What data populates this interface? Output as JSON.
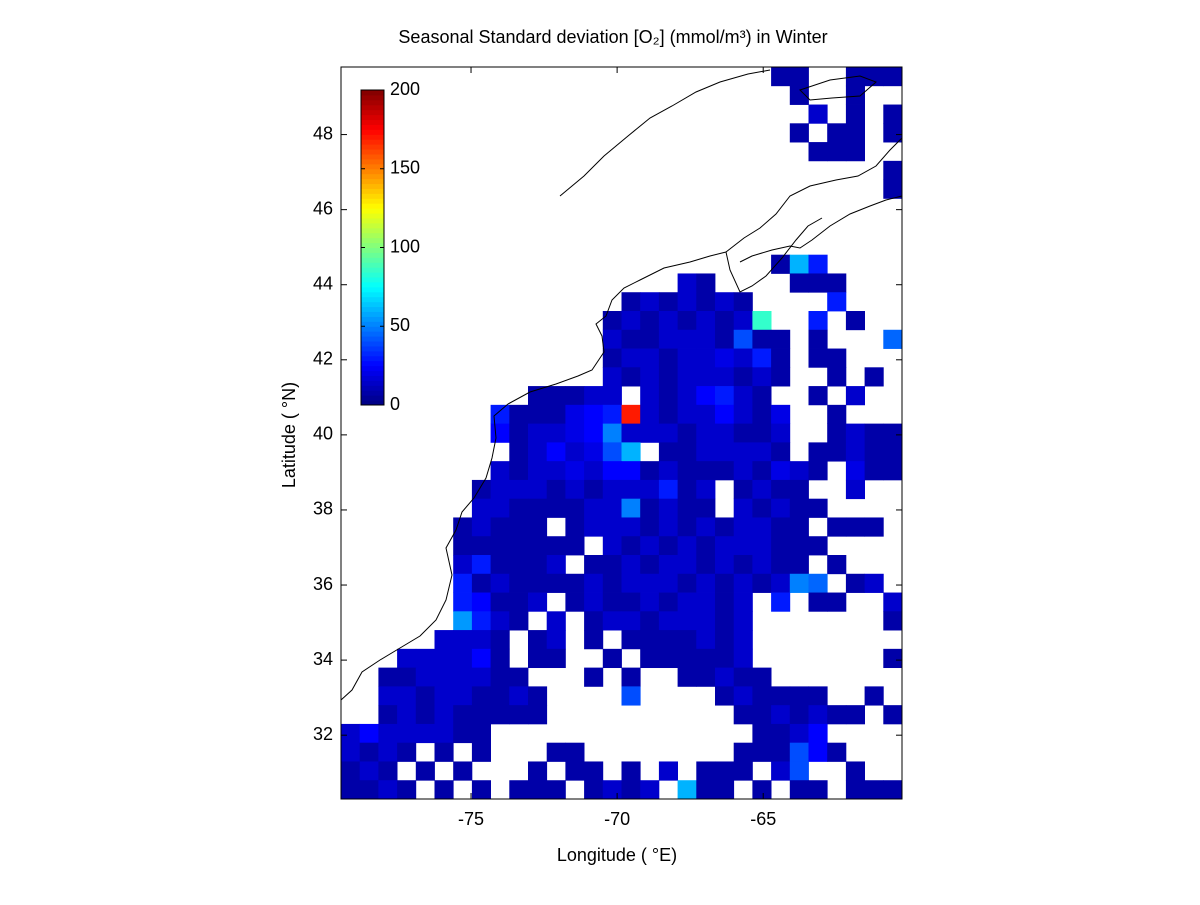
{
  "chart_data": {
    "type": "heatmap",
    "title": "Seasonal Standard deviation [O₂] (mmol/m³) in  Winter",
    "x_label": "Longitude ( °E)",
    "y_label": "Latitude ( °N)",
    "xlim": [
      -79.45,
      -60.25
    ],
    "ylim": [
      30.3,
      49.8
    ],
    "xticks": [
      -75,
      -70,
      -65
    ],
    "yticks": [
      32,
      34,
      36,
      38,
      40,
      42,
      44,
      46,
      48
    ],
    "colormap": "jet",
    "clim": [
      0,
      200
    ],
    "colorbar_ticks": [
      0,
      50,
      100,
      150,
      200
    ],
    "x": [
      -79.13,
      -78.49,
      -77.85,
      -77.21,
      -76.57,
      -75.93,
      -75.29,
      -74.65,
      -74.01,
      -73.37,
      -72.73,
      -72.09,
      -71.45,
      -70.81,
      -70.17,
      -69.53,
      -68.89,
      -68.25,
      -67.61,
      -66.97,
      -66.33,
      -65.69,
      -65.05,
      -64.41,
      -63.77,
      -63.13,
      -62.49,
      -61.85,
      -61.21,
      -60.57
    ],
    "y": [
      49.55,
      49.05,
      48.55,
      48.05,
      47.55,
      47.05,
      46.55,
      46.05,
      45.55,
      45.05,
      44.55,
      44.05,
      43.55,
      43.05,
      42.55,
      42.05,
      41.55,
      41.05,
      40.55,
      40.05,
      39.55,
      39.05,
      38.55,
      38.05,
      37.55,
      37.05,
      36.55,
      36.05,
      35.55,
      35.05,
      34.55,
      34.05,
      33.55,
      33.05,
      32.55,
      32.05,
      31.55,
      31.05,
      30.55
    ],
    "z": [
      [
        null,
        null,
        null,
        null,
        null,
        null,
        null,
        null,
        null,
        null,
        null,
        null,
        null,
        null,
        null,
        null,
        null,
        null,
        null,
        null,
        null,
        null,
        null,
        8,
        8,
        null,
        null,
        8,
        8,
        8
      ],
      [
        null,
        null,
        null,
        null,
        null,
        null,
        null,
        null,
        null,
        null,
        null,
        null,
        null,
        null,
        null,
        null,
        null,
        null,
        null,
        null,
        null,
        null,
        null,
        null,
        8,
        null,
        null,
        8,
        null,
        null
      ],
      [
        null,
        null,
        null,
        null,
        null,
        null,
        null,
        null,
        null,
        null,
        null,
        null,
        null,
        null,
        null,
        null,
        null,
        null,
        null,
        null,
        null,
        null,
        null,
        null,
        null,
        15,
        null,
        8,
        null,
        8
      ],
      [
        null,
        null,
        null,
        null,
        null,
        null,
        null,
        null,
        null,
        null,
        null,
        null,
        null,
        null,
        null,
        null,
        null,
        null,
        null,
        null,
        null,
        null,
        null,
        null,
        8,
        null,
        8,
        8,
        null,
        8
      ],
      [
        null,
        null,
        null,
        null,
        null,
        null,
        null,
        null,
        null,
        null,
        null,
        null,
        null,
        null,
        null,
        null,
        null,
        null,
        null,
        null,
        null,
        null,
        null,
        null,
        null,
        8,
        8,
        8,
        null,
        null
      ],
      [
        null,
        null,
        null,
        null,
        null,
        null,
        null,
        null,
        null,
        null,
        null,
        null,
        null,
        null,
        null,
        null,
        null,
        null,
        null,
        null,
        null,
        null,
        null,
        null,
        null,
        null,
        null,
        null,
        null,
        8
      ],
      [
        null,
        null,
        null,
        null,
        null,
        null,
        null,
        null,
        null,
        null,
        null,
        null,
        null,
        null,
        null,
        null,
        null,
        null,
        null,
        null,
        null,
        null,
        null,
        null,
        null,
        null,
        null,
        null,
        null,
        8
      ],
      [
        null,
        null,
        null,
        null,
        null,
        null,
        null,
        null,
        null,
        null,
        null,
        null,
        null,
        null,
        null,
        null,
        null,
        null,
        null,
        null,
        null,
        null,
        null,
        null,
        null,
        null,
        null,
        null,
        null,
        null
      ],
      [
        null,
        null,
        null,
        null,
        null,
        null,
        null,
        null,
        null,
        null,
        null,
        null,
        null,
        null,
        null,
        null,
        null,
        null,
        null,
        null,
        null,
        null,
        null,
        null,
        null,
        null,
        null,
        null,
        null,
        null
      ],
      [
        null,
        null,
        null,
        null,
        null,
        null,
        null,
        null,
        null,
        null,
        null,
        null,
        null,
        null,
        null,
        null,
        null,
        null,
        null,
        null,
        null,
        null,
        null,
        null,
        null,
        null,
        null,
        null,
        null,
        null
      ],
      [
        null,
        null,
        null,
        null,
        null,
        null,
        null,
        null,
        null,
        null,
        null,
        null,
        null,
        null,
        null,
        null,
        null,
        null,
        null,
        null,
        null,
        null,
        null,
        8,
        60,
        30,
        null,
        null,
        null,
        null
      ],
      [
        null,
        null,
        null,
        null,
        null,
        null,
        null,
        null,
        null,
        null,
        null,
        null,
        null,
        null,
        null,
        null,
        null,
        null,
        15,
        8,
        null,
        null,
        null,
        null,
        8,
        8,
        8,
        null,
        null,
        null
      ],
      [
        null,
        null,
        null,
        null,
        null,
        null,
        null,
        null,
        null,
        null,
        null,
        null,
        null,
        null,
        null,
        8,
        15,
        8,
        15,
        8,
        15,
        8,
        null,
        null,
        null,
        null,
        30,
        null,
        null,
        null
      ],
      [
        null,
        null,
        null,
        null,
        null,
        null,
        null,
        null,
        null,
        null,
        null,
        null,
        null,
        null,
        8,
        15,
        8,
        15,
        8,
        15,
        8,
        15,
        85,
        null,
        null,
        30,
        null,
        8,
        null,
        null
      ],
      [
        null,
        null,
        null,
        null,
        null,
        null,
        null,
        null,
        null,
        null,
        null,
        null,
        null,
        null,
        15,
        8,
        8,
        15,
        15,
        15,
        8,
        40,
        8,
        8,
        null,
        8,
        null,
        null,
        null,
        45
      ],
      [
        null,
        null,
        null,
        null,
        null,
        null,
        null,
        null,
        null,
        null,
        null,
        null,
        null,
        null,
        8,
        15,
        15,
        8,
        15,
        15,
        20,
        15,
        30,
        8,
        null,
        8,
        8,
        null,
        null,
        null
      ],
      [
        null,
        null,
        null,
        null,
        null,
        null,
        null,
        null,
        null,
        null,
        null,
        null,
        null,
        null,
        15,
        8,
        15,
        8,
        15,
        15,
        15,
        8,
        15,
        8,
        null,
        null,
        8,
        null,
        8,
        null
      ],
      [
        null,
        null,
        null,
        null,
        null,
        null,
        null,
        null,
        null,
        null,
        8,
        8,
        8,
        15,
        15,
        null,
        15,
        8,
        15,
        25,
        30,
        15,
        8,
        null,
        null,
        8,
        null,
        15,
        null,
        null
      ],
      [
        null,
        null,
        null,
        null,
        null,
        null,
        null,
        null,
        30,
        8,
        8,
        8,
        20,
        25,
        30,
        170,
        15,
        8,
        15,
        15,
        25,
        15,
        8,
        20,
        null,
        null,
        8,
        null,
        null,
        null
      ],
      [
        null,
        null,
        null,
        null,
        null,
        null,
        null,
        null,
        25,
        8,
        15,
        15,
        20,
        25,
        50,
        15,
        15,
        15,
        8,
        15,
        15,
        8,
        8,
        15,
        null,
        null,
        8,
        15,
        8,
        8
      ],
      [
        null,
        null,
        null,
        null,
        null,
        null,
        null,
        null,
        null,
        8,
        15,
        25,
        15,
        20,
        40,
        60,
        null,
        8,
        8,
        15,
        15,
        15,
        15,
        8,
        null,
        8,
        8,
        15,
        8,
        8
      ],
      [
        null,
        null,
        null,
        null,
        null,
        null,
        null,
        null,
        15,
        8,
        15,
        15,
        20,
        15,
        25,
        25,
        8,
        15,
        8,
        8,
        8,
        15,
        8,
        20,
        15,
        8,
        null,
        20,
        8,
        8
      ],
      [
        null,
        null,
        null,
        null,
        null,
        null,
        null,
        8,
        15,
        15,
        15,
        8,
        15,
        8,
        15,
        15,
        15,
        30,
        8,
        15,
        null,
        8,
        15,
        8,
        8,
        null,
        null,
        15,
        null,
        null
      ],
      [
        null,
        null,
        null,
        null,
        null,
        null,
        null,
        15,
        15,
        8,
        8,
        8,
        8,
        15,
        15,
        50,
        8,
        15,
        8,
        8,
        null,
        15,
        8,
        15,
        8,
        8,
        null,
        null,
        null,
        null
      ],
      [
        null,
        null,
        null,
        null,
        null,
        null,
        8,
        15,
        8,
        8,
        8,
        null,
        8,
        15,
        15,
        15,
        8,
        15,
        8,
        15,
        8,
        15,
        15,
        8,
        8,
        null,
        8,
        8,
        8,
        null
      ],
      [
        null,
        null,
        null,
        null,
        null,
        null,
        8,
        8,
        8,
        8,
        8,
        8,
        8,
        null,
        15,
        8,
        15,
        8,
        15,
        8,
        15,
        15,
        15,
        8,
        8,
        8,
        null,
        null,
        null,
        null
      ],
      [
        null,
        null,
        null,
        null,
        null,
        null,
        15,
        30,
        8,
        8,
        8,
        15,
        null,
        8,
        8,
        15,
        8,
        15,
        15,
        8,
        15,
        8,
        15,
        8,
        8,
        null,
        8,
        null,
        null,
        null
      ],
      [
        null,
        null,
        null,
        null,
        null,
        null,
        30,
        8,
        15,
        8,
        8,
        8,
        8,
        15,
        8,
        15,
        15,
        15,
        8,
        15,
        8,
        15,
        8,
        15,
        50,
        45,
        null,
        8,
        15,
        null
      ],
      [
        null,
        null,
        null,
        null,
        null,
        null,
        30,
        25,
        8,
        8,
        15,
        null,
        8,
        15,
        8,
        8,
        15,
        8,
        15,
        15,
        8,
        15,
        null,
        30,
        null,
        8,
        8,
        null,
        null,
        15
      ],
      [
        null,
        null,
        null,
        null,
        null,
        null,
        55,
        30,
        15,
        8,
        null,
        15,
        null,
        8,
        15,
        15,
        8,
        15,
        15,
        15,
        8,
        15,
        null,
        null,
        null,
        null,
        null,
        null,
        null,
        8
      ],
      [
        null,
        null,
        null,
        null,
        null,
        15,
        15,
        15,
        8,
        null,
        8,
        15,
        null,
        8,
        null,
        8,
        8,
        8,
        8,
        15,
        8,
        15,
        null,
        null,
        null,
        null,
        null,
        null,
        null,
        null
      ],
      [
        null,
        null,
        null,
        15,
        15,
        15,
        15,
        25,
        8,
        null,
        8,
        8,
        null,
        null,
        8,
        null,
        8,
        8,
        8,
        8,
        8,
        15,
        null,
        null,
        null,
        null,
        null,
        null,
        null,
        8
      ],
      [
        null,
        null,
        8,
        8,
        15,
        15,
        15,
        15,
        8,
        8,
        null,
        null,
        null,
        8,
        null,
        8,
        null,
        null,
        8,
        8,
        15,
        8,
        8,
        null,
        null,
        null,
        null,
        null,
        null,
        null
      ],
      [
        null,
        null,
        15,
        15,
        8,
        15,
        15,
        8,
        8,
        15,
        8,
        null,
        null,
        null,
        null,
        40,
        null,
        null,
        null,
        null,
        8,
        15,
        8,
        8,
        8,
        8,
        null,
        null,
        8,
        null
      ],
      [
        null,
        null,
        8,
        15,
        8,
        15,
        8,
        8,
        8,
        8,
        8,
        null,
        null,
        null,
        null,
        null,
        null,
        null,
        null,
        null,
        null,
        8,
        8,
        15,
        8,
        15,
        8,
        8,
        null,
        8
      ],
      [
        15,
        25,
        15,
        15,
        15,
        15,
        8,
        8,
        null,
        null,
        null,
        null,
        null,
        null,
        null,
        null,
        null,
        null,
        null,
        null,
        null,
        null,
        8,
        8,
        15,
        25,
        null,
        null,
        null,
        null
      ],
      [
        15,
        8,
        15,
        8,
        null,
        8,
        null,
        8,
        null,
        null,
        null,
        8,
        8,
        null,
        null,
        null,
        null,
        null,
        null,
        null,
        null,
        8,
        8,
        8,
        40,
        25,
        8,
        null,
        null,
        null
      ],
      [
        8,
        15,
        8,
        null,
        8,
        null,
        8,
        null,
        null,
        null,
        8,
        null,
        8,
        8,
        null,
        8,
        null,
        15,
        null,
        8,
        8,
        8,
        null,
        15,
        40,
        null,
        null,
        8,
        null,
        null
      ],
      [
        8,
        8,
        15,
        8,
        null,
        8,
        null,
        8,
        null,
        8,
        8,
        8,
        null,
        8,
        15,
        8,
        15,
        null,
        60,
        8,
        8,
        null,
        8,
        null,
        8,
        8,
        null,
        8,
        8,
        8
      ]
    ]
  }
}
